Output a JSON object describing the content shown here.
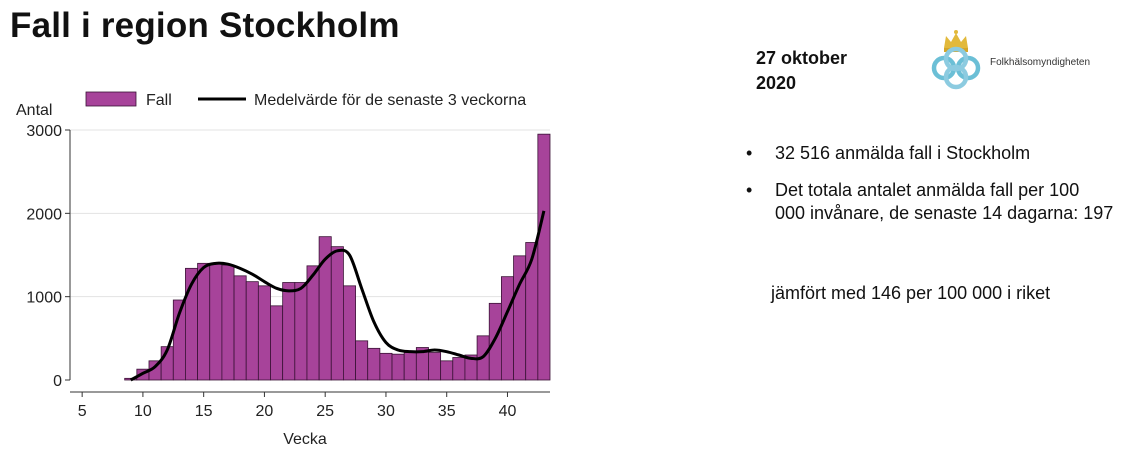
{
  "slide": {
    "title": "Fall i region Stockholm",
    "date_line1": "27 oktober",
    "date_line2": "2020",
    "logo_text": "Folkhälsomyndigheten",
    "bullets": [
      "32 516 anmälda fall i Stockholm",
      "Det totala antalet anmälda fall per 100 000 invånare, de senaste 14 dagarna: 197"
    ],
    "comparison": "jämfört med 146 per 100 000 i riket"
  },
  "colors": {
    "bar_fill": "#a7439a",
    "bar_stroke": "#3a1236",
    "line": "#000000",
    "grid": "#e3e3e3"
  },
  "chart_data": {
    "type": "bar",
    "title": "",
    "xlabel": "Vecka",
    "ylabel": "Antal",
    "xlim": [
      4,
      43.5
    ],
    "ylim": [
      0,
      3000
    ],
    "xticks": [
      5,
      10,
      15,
      20,
      25,
      30,
      35,
      40
    ],
    "yticks": [
      0,
      1000,
      2000,
      3000
    ],
    "grid": "horizontal",
    "legend_position": "top",
    "series": [
      {
        "name": "Fall",
        "type": "bar",
        "x": [
          9,
          10,
          11,
          12,
          13,
          14,
          15,
          16,
          17,
          18,
          19,
          20,
          21,
          22,
          23,
          24,
          25,
          26,
          27,
          28,
          29,
          30,
          31,
          32,
          33,
          34,
          35,
          36,
          37,
          38,
          39,
          40,
          41,
          42,
          43
        ],
        "values": [
          20,
          130,
          230,
          400,
          960,
          1340,
          1400,
          1400,
          1380,
          1250,
          1180,
          1130,
          890,
          1170,
          1170,
          1370,
          1720,
          1600,
          1130,
          470,
          380,
          320,
          310,
          330,
          390,
          330,
          230,
          270,
          300,
          530,
          920,
          1240,
          1490,
          1650,
          2950
        ]
      },
      {
        "name": "Medelvärde för de senaste 3 veckorna",
        "type": "line",
        "x": [
          9,
          10,
          11,
          12,
          13,
          14,
          15,
          16,
          17,
          18,
          19,
          20,
          21,
          22,
          23,
          24,
          25,
          26,
          27,
          28,
          29,
          30,
          31,
          32,
          33,
          34,
          35,
          36,
          37,
          38,
          39,
          40,
          41,
          42,
          43
        ],
        "values": [
          0,
          80,
          160,
          360,
          800,
          1150,
          1350,
          1400,
          1390,
          1340,
          1270,
          1180,
          1100,
          1070,
          1100,
          1260,
          1450,
          1550,
          1500,
          1100,
          700,
          450,
          360,
          340,
          340,
          360,
          340,
          300,
          260,
          280,
          500,
          820,
          1150,
          1450,
          2030
        ]
      }
    ]
  }
}
